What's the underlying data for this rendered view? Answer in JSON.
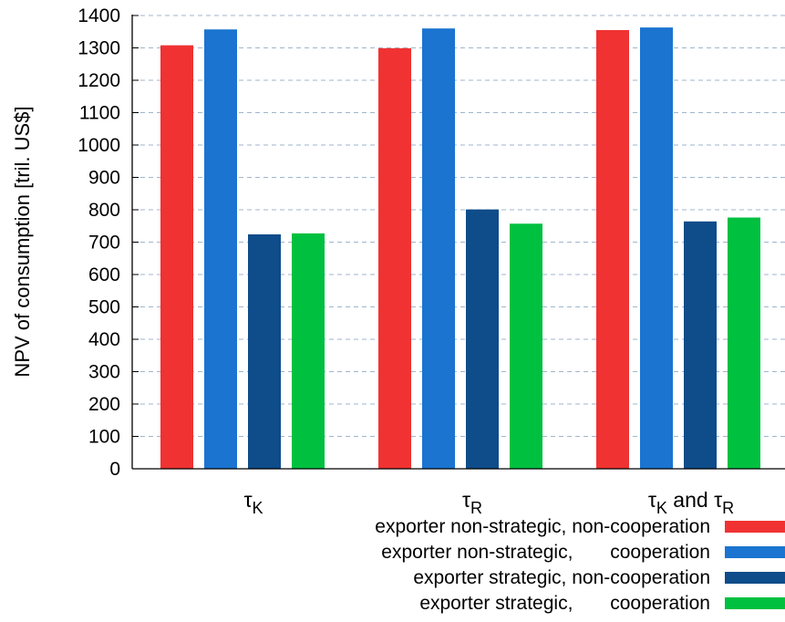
{
  "chart_data": {
    "type": "bar",
    "categories": [
      {
        "sym": "τ",
        "sub": "K",
        "suffix": "",
        "sym2": "",
        "sub2": ""
      },
      {
        "sym": "τ",
        "sub": "R",
        "suffix": "",
        "sym2": "",
        "sub2": ""
      },
      {
        "sym": "τ",
        "sub": "K",
        "suffix": " and ",
        "sym2": "τ",
        "sub2": "R"
      }
    ],
    "series": [
      {
        "name": "exporter non-strategic, non-cooperation",
        "values": [
          1308,
          1299,
          1355
        ],
        "color": "#f03232"
      },
      {
        "name": "exporter non-strategic,       cooperation",
        "values": [
          1357,
          1360,
          1363
        ],
        "color": "#1a74d0"
      },
      {
        "name": "exporter strategic, non-cooperation",
        "values": [
          724,
          801,
          764
        ],
        "color": "#0f4c8a"
      },
      {
        "name": "exporter strategic,       cooperation",
        "values": [
          727,
          757,
          776
        ],
        "color": "#00c040"
      }
    ],
    "ylabel": "NPV of consumption [tril. US$]",
    "ylim": [
      0,
      1400
    ],
    "yticks": [
      0,
      100,
      200,
      300,
      400,
      500,
      600,
      700,
      800,
      900,
      1000,
      1100,
      1200,
      1300,
      1400
    ],
    "grid": true,
    "legend": "bottom-right"
  }
}
